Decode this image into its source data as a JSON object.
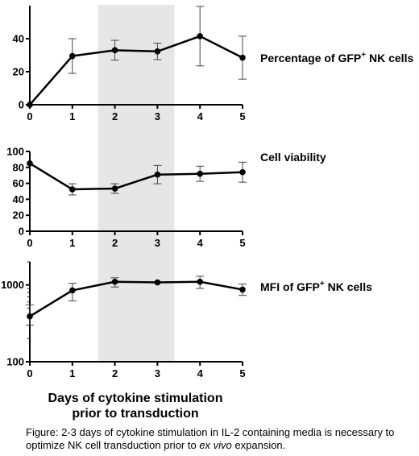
{
  "chart_data": [
    {
      "type": "line",
      "annotation": {
        "text": "Percentage of GFP",
        "sup": "+",
        "text_after": " NK cells"
      },
      "x": [
        0,
        1,
        2,
        3,
        4,
        5
      ],
      "xticks": [
        "0",
        "1",
        "2",
        "3",
        "4",
        "5"
      ],
      "yticks": [
        "0",
        "20",
        "40"
      ],
      "y": [
        0,
        29.5,
        33,
        32.3,
        41.5,
        28.5
      ],
      "err": [
        0,
        10.5,
        6,
        5,
        18,
        13
      ],
      "xlim": [
        0,
        5
      ],
      "ylim": [
        0,
        60
      ],
      "yscale": "linear"
    },
    {
      "type": "line",
      "annotation": {
        "text": "Cell viability",
        "sup": "",
        "text_after": ""
      },
      "x": [
        0,
        1,
        2,
        3,
        4,
        5
      ],
      "xticks": [
        "0",
        "1",
        "2",
        "3",
        "4",
        "5"
      ],
      "yticks": [
        "0",
        "20",
        "40",
        "60",
        "80",
        "100"
      ],
      "y": [
        85,
        52.5,
        53.5,
        71,
        72,
        74
      ],
      "err": [
        0,
        7,
        6,
        11.5,
        9.5,
        12.5
      ],
      "xlim": [
        0,
        5
      ],
      "ylim": [
        0,
        100
      ],
      "yscale": "linear"
    },
    {
      "type": "line",
      "annotation": {
        "text": "MFI of GFP",
        "sup": "+",
        "text_after": " NK cells"
      },
      "x": [
        0,
        1,
        2,
        3,
        4,
        5
      ],
      "xticks": [
        "0",
        "1",
        "2",
        "3",
        "4",
        "5"
      ],
      "yticks": [
        "100",
        "1000"
      ],
      "y": [
        390,
        850,
        1100,
        1080,
        1100,
        870
      ],
      "err_low": [
        90,
        230,
        160,
        0,
        200,
        140
      ],
      "err_high": [
        160,
        200,
        140,
        0,
        200,
        160
      ],
      "xlim": [
        0,
        5
      ],
      "ylim": [
        100,
        2000
      ],
      "yscale": "log"
    }
  ],
  "shaded_region": {
    "x_from": 1.6,
    "x_to": 3.4
  },
  "xlabel_line1": "Days of cytokine stimulation",
  "xlabel_line2": "prior to transduction",
  "caption": {
    "part1": "Figure:  2-3 days of cytokine stimulation in IL-2 containing media is necessary to optimize NK cell transduction prior to ",
    "ital": "ex vivo",
    "part2": " expansion."
  },
  "colors": {
    "line": "#000000",
    "shade": "#e6e6e6",
    "error": "#444444"
  }
}
